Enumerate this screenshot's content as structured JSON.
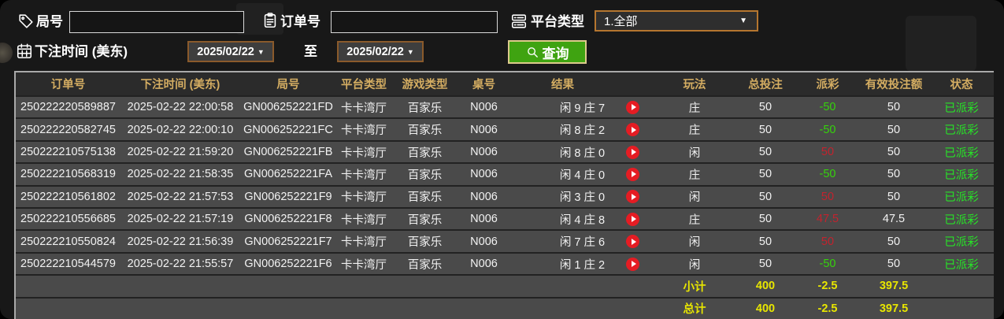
{
  "filters": {
    "round": {
      "label": "局号",
      "value": "",
      "icon": "tag-icon"
    },
    "order": {
      "label": "订单号",
      "value": "",
      "icon": "clipboard-icon"
    },
    "platform": {
      "label": "平台类型",
      "value": "1.全部",
      "icon": "server-icon"
    },
    "bet_time": {
      "label": "下注时间 (美东)",
      "icon": "calendar-icon"
    },
    "date_from": "2025/02/22",
    "to_label": "至",
    "date_to": "2025/02/22",
    "query_button": "查询"
  },
  "table": {
    "headers": [
      "订单号",
      "下注时间 (美东)",
      "局号",
      "平台类型",
      "游戏类型",
      "桌号",
      "结果",
      "玩法",
      "总投注",
      "派彩",
      "有效投注额",
      "状态"
    ],
    "rows": [
      {
        "order": "250222220589887",
        "time": "2025-02-22 22:00:58",
        "round": "GN006252221FD",
        "platform": "卡卡湾厅",
        "game": "百家乐",
        "table_no": "N006",
        "result": "闲 9 庄 7",
        "play": "庄",
        "total_bet": "50",
        "payout": "-50",
        "payout_type": "loss",
        "valid_bet": "50",
        "status": "已派彩"
      },
      {
        "order": "250222220582745",
        "time": "2025-02-22 22:00:10",
        "round": "GN006252221FC",
        "platform": "卡卡湾厅",
        "game": "百家乐",
        "table_no": "N006",
        "result": "闲 8 庄 2",
        "play": "庄",
        "total_bet": "50",
        "payout": "-50",
        "payout_type": "loss",
        "valid_bet": "50",
        "status": "已派彩"
      },
      {
        "order": "250222210575138",
        "time": "2025-02-22 21:59:20",
        "round": "GN006252221FB",
        "platform": "卡卡湾厅",
        "game": "百家乐",
        "table_no": "N006",
        "result": "闲 8 庄 0",
        "play": "闲",
        "total_bet": "50",
        "payout": "50",
        "payout_type": "win",
        "valid_bet": "50",
        "status": "已派彩"
      },
      {
        "order": "250222210568319",
        "time": "2025-02-22 21:58:35",
        "round": "GN006252221FA",
        "platform": "卡卡湾厅",
        "game": "百家乐",
        "table_no": "N006",
        "result": "闲 4 庄 0",
        "play": "庄",
        "total_bet": "50",
        "payout": "-50",
        "payout_type": "loss",
        "valid_bet": "50",
        "status": "已派彩"
      },
      {
        "order": "250222210561802",
        "time": "2025-02-22 21:57:53",
        "round": "GN006252221F9",
        "platform": "卡卡湾厅",
        "game": "百家乐",
        "table_no": "N006",
        "result": "闲 3 庄 0",
        "play": "闲",
        "total_bet": "50",
        "payout": "50",
        "payout_type": "win",
        "valid_bet": "50",
        "status": "已派彩"
      },
      {
        "order": "250222210556685",
        "time": "2025-02-22 21:57:19",
        "round": "GN006252221F8",
        "platform": "卡卡湾厅",
        "game": "百家乐",
        "table_no": "N006",
        "result": "闲 4 庄 8",
        "play": "庄",
        "total_bet": "50",
        "payout": "47.5",
        "payout_type": "win",
        "valid_bet": "47.5",
        "status": "已派彩"
      },
      {
        "order": "250222210550824",
        "time": "2025-02-22 21:56:39",
        "round": "GN006252221F7",
        "platform": "卡卡湾厅",
        "game": "百家乐",
        "table_no": "N006",
        "result": "闲 7 庄 6",
        "play": "闲",
        "total_bet": "50",
        "payout": "50",
        "payout_type": "win",
        "valid_bet": "50",
        "status": "已派彩"
      },
      {
        "order": "250222210544579",
        "time": "2025-02-22 21:55:57",
        "round": "GN006252221F6",
        "platform": "卡卡湾厅",
        "game": "百家乐",
        "table_no": "N006",
        "result": "闲 1 庄 2",
        "play": "闲",
        "total_bet": "50",
        "payout": "-50",
        "payout_type": "loss",
        "valid_bet": "50",
        "status": "已派彩"
      }
    ],
    "subtotal": {
      "label": "小计",
      "total_bet": "400",
      "payout": "-2.5",
      "valid_bet": "397.5"
    },
    "grand_total": {
      "label": "总计",
      "total_bet": "400",
      "payout": "-2.5",
      "valid_bet": "397.5"
    }
  },
  "colors": {
    "header_gold": "#d4ad62",
    "payout_win_red": "#c2232e",
    "payout_loss_green": "#35d30b",
    "status_green": "#27e327",
    "totals_yellow": "#e8e600",
    "query_button_green": "#3fa311",
    "date_border_brown": "#8a5a2b",
    "select_border_orange": "#b5762f",
    "row_bg": "#4a4a4a",
    "header_bg": "#2b2b2b"
  }
}
